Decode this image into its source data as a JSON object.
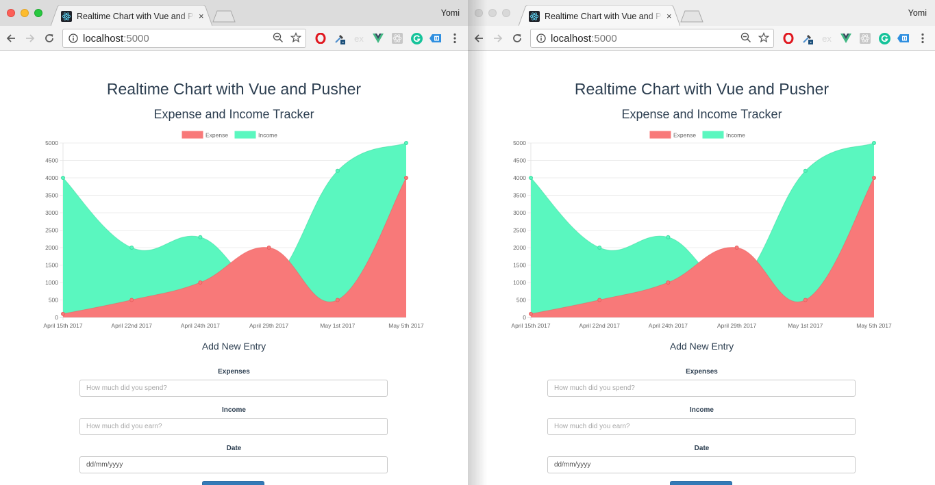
{
  "profile_name": "Yomi",
  "windows": [
    {
      "id": "left",
      "active": true,
      "tab": {
        "title": "Realtime Chart with Vue and Pusher",
        "close_label": "×"
      },
      "address": {
        "host": "localhost",
        "port": ":5000"
      },
      "extensions": [
        "opera-icon",
        "eyedropper-icon",
        "express-icon",
        "vue-devtools-icon",
        "react-devtools-icon",
        "grammarly-icon",
        "tag-extension-icon"
      ]
    },
    {
      "id": "right",
      "active": false,
      "tab": {
        "title": "Realtime Chart with Vue and Pusher",
        "close_label": "×"
      },
      "address": {
        "host": "localhost",
        "port": ":5000"
      },
      "extensions": [
        "opera-icon",
        "eyedropper-icon",
        "express-icon",
        "vue-devtools-icon",
        "react-devtools-icon",
        "grammarly-icon",
        "tag-extension-icon"
      ]
    }
  ],
  "page": {
    "title": "Realtime Chart with Vue and Pusher",
    "chart_title": "Expense and Income Tracker",
    "form_title": "Add New Entry",
    "form": {
      "expenses_label": "Expenses",
      "expenses_placeholder": "How much did you spend?",
      "income_label": "Income",
      "income_placeholder": "How much did you earn?",
      "date_label": "Date",
      "date_placeholder": "dd/mm/yyyy"
    }
  },
  "colors": {
    "expense": "#f87979",
    "income": "#5af7bf",
    "expense_point": "#e86060",
    "income_point": "#3fd9a1",
    "text": "#2c3e50",
    "button": "#337ab7"
  },
  "chart_data": {
    "type": "area",
    "title": "Expense and Income Tracker",
    "categories": [
      "April 15th 2017",
      "April 22nd 2017",
      "April 24th 2017",
      "April 29th 2017",
      "May 1st 2017",
      "May 5th 2017"
    ],
    "series": [
      {
        "name": "Expense",
        "color": "#f87979",
        "values": [
          100,
          500,
          1000,
          2000,
          500,
          4000
        ]
      },
      {
        "name": "Income",
        "color": "#5af7bf",
        "values": [
          4000,
          2000,
          2300,
          1000,
          4200,
          5000
        ]
      }
    ],
    "yticks": [
      0,
      500,
      1000,
      1500,
      2000,
      2500,
      3000,
      3500,
      4000,
      4500,
      5000
    ],
    "ylim": [
      0,
      5000
    ],
    "grid": true,
    "legend_position": "top",
    "xlabel": "",
    "ylabel": ""
  }
}
